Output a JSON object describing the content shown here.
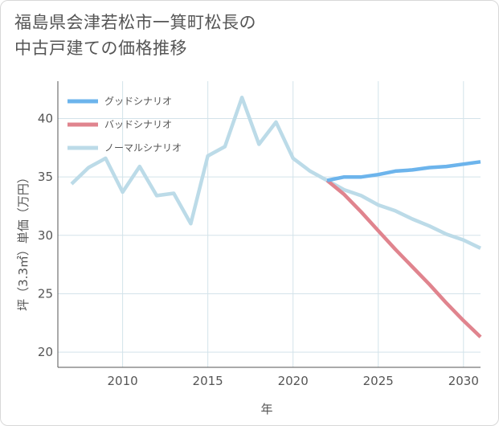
{
  "title_lines": [
    "福島県会津若松市一箕町松長の",
    "中古戸建ての価格推移"
  ],
  "chart_data": {
    "type": "line",
    "xlabel": "年",
    "ylabel": "坪（3.3㎡）単価（万円）",
    "xlim": [
      2006.2,
      2031
    ],
    "ylim": [
      18.7,
      43.2
    ],
    "xticks": [
      2010,
      2015,
      2020,
      2025,
      2030
    ],
    "yticks": [
      20,
      25,
      30,
      35,
      40
    ],
    "grid": true,
    "legend_position": "top-left",
    "series": [
      {
        "name": "グッドシナリオ",
        "color": "#6cb4ec",
        "x": [
          2022,
          2023,
          2024,
          2025,
          2026,
          2027,
          2028,
          2029,
          2030,
          2031
        ],
        "values": [
          34.7,
          35.0,
          35.0,
          35.2,
          35.5,
          35.6,
          35.8,
          35.9,
          36.1,
          36.3
        ]
      },
      {
        "name": "バッドシナリオ",
        "color": "#e0848e",
        "x": [
          2022,
          2023,
          2024,
          2025,
          2026,
          2027,
          2028,
          2029,
          2030,
          2031
        ],
        "values": [
          34.7,
          33.5,
          32.0,
          30.4,
          28.8,
          27.3,
          25.8,
          24.2,
          22.7,
          21.3
        ]
      },
      {
        "name": "ノーマルシナリオ",
        "color": "#bcdbe8",
        "x": [
          2007,
          2008,
          2009,
          2010,
          2011,
          2012,
          2013,
          2014,
          2015,
          2016,
          2017,
          2018,
          2019,
          2020,
          2021,
          2022,
          2023,
          2024,
          2025,
          2026,
          2027,
          2028,
          2029,
          2030,
          2031
        ],
        "values": [
          34.4,
          35.8,
          36.6,
          33.7,
          35.9,
          33.4,
          33.6,
          31.0,
          36.8,
          37.6,
          41.8,
          37.8,
          39.7,
          36.6,
          35.5,
          34.7,
          33.9,
          33.4,
          32.6,
          32.1,
          31.4,
          30.8,
          30.1,
          29.6,
          28.9
        ]
      }
    ]
  }
}
